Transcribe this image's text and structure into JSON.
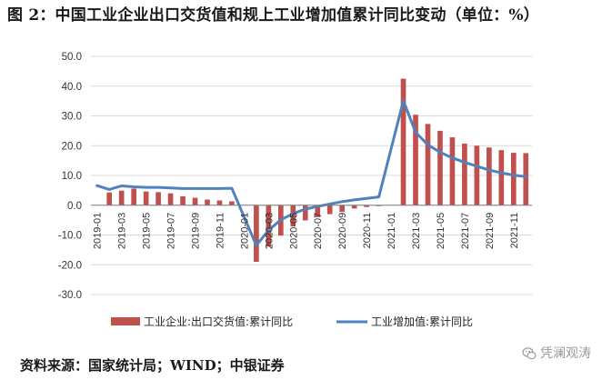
{
  "title": "图 2：中国工业企业出口交货值和规上工业增加值累计同比变动（单位：%）",
  "source": "资料来源：国家统计局；WIND；中银证券",
  "watermark": "凭澜观涛",
  "colors": {
    "bar": "#c0504d",
    "line": "#4f81bd",
    "grid": "#d9d9d9",
    "axis": "#7f7f7f"
  },
  "chart_data": {
    "type": "bar+line",
    "ylim": [
      -30,
      50
    ],
    "yticks": [
      "50.0",
      "40.0",
      "30.0",
      "20.0",
      "10.0",
      "0.0",
      "-10.0",
      "-20.0",
      "-30.0"
    ],
    "ytick_values": [
      50,
      40,
      30,
      20,
      10,
      0,
      -10,
      -20,
      -30
    ],
    "x": [
      "2019-01",
      "2019-02",
      "2019-03",
      "2019-04",
      "2019-05",
      "2019-06",
      "2019-07",
      "2019-08",
      "2019-09",
      "2019-10",
      "2019-11",
      "2019-12",
      "2020-01",
      "2020-02",
      "2020-03",
      "2020-04",
      "2020-05",
      "2020-06",
      "2020-07",
      "2020-08",
      "2020-09",
      "2020-10",
      "2020-11",
      "2020-12",
      "2021-01",
      "2021-02",
      "2021-03",
      "2021-04",
      "2021-05",
      "2021-06",
      "2021-07",
      "2021-08",
      "2021-09",
      "2021-10",
      "2021-11",
      "2021-12"
    ],
    "xtick_labels": [
      "2019-01",
      "2019-03",
      "2019-05",
      "2019-07",
      "2019-09",
      "2019-11",
      "2020-01",
      "2020-03",
      "2020-05",
      "2020-07",
      "2020-09",
      "2020-11",
      "2021-01",
      "2021-03",
      "2021-05",
      "2021-07",
      "2021-09",
      "2021-11"
    ],
    "series": [
      {
        "name": "工业企业:出口交货值:累计同比",
        "kind": "bar",
        "values": [
          null,
          4.3,
          4.9,
          5.6,
          4.6,
          4.4,
          4.0,
          3.0,
          2.5,
          1.9,
          1.6,
          1.3,
          null,
          -19.0,
          -13.9,
          -10.2,
          -7.1,
          -5.1,
          -4.0,
          -3.0,
          -2.2,
          -1.1,
          -0.6,
          -0.3,
          null,
          42.5,
          30.4,
          27.3,
          25.0,
          22.8,
          20.7,
          20.0,
          19.4,
          18.5,
          17.6,
          17.5
        ]
      },
      {
        "name": "工业增加值:累计同比",
        "kind": "line",
        "values": [
          null,
          5.3,
          6.5,
          6.2,
          6.0,
          6.0,
          5.8,
          5.6,
          5.6,
          5.6,
          5.6,
          5.7,
          null,
          -13.5,
          -8.4,
          -4.9,
          -2.8,
          -1.3,
          -0.4,
          0.4,
          1.2,
          1.8,
          2.3,
          2.8,
          null,
          35.1,
          24.5,
          20.3,
          17.8,
          15.9,
          14.4,
          13.1,
          11.8,
          10.9,
          10.1,
          9.6
        ]
      }
    ],
    "line_start_value": 6.6,
    "legend": [
      "工业企业:出口交货值:累计同比",
      "工业增加值:累计同比"
    ],
    "legend_position": "bottom"
  }
}
